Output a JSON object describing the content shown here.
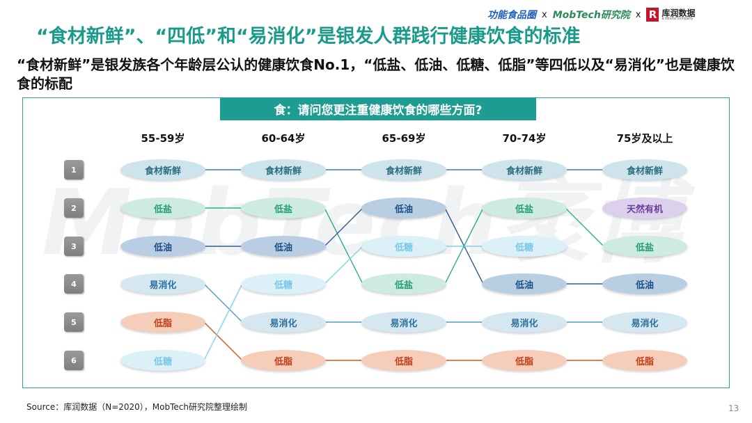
{
  "logos": {
    "brand_a": "功能食品圈",
    "brand_b": "MobTech研究院",
    "brand_c": "库润数据",
    "brand_c_sub": "a toluna company",
    "separator": "x",
    "brand_c_mark": "R"
  },
  "title": "“食材新鲜”、“四低”和“易消化”是银发人群践行健康饮食的标准",
  "subtitle": "“食材新鲜”是银发族各个年龄层公认的健康饮食No.1，“低盐、低油、低糖、低脂”等四低以及“易消化”也是健康饮食的标配",
  "question": "食：请问您更注重健康饮食的哪些方面?",
  "watermark": "MobTech袤博",
  "ranks": [
    "1",
    "2",
    "3",
    "4",
    "5",
    "6"
  ],
  "age_groups": [
    "55-59岁",
    "60-64岁",
    "65-69岁",
    "70-74岁",
    "75岁及以上"
  ],
  "columns": [
    [
      "食材新鲜",
      "低盐",
      "低油",
      "易消化",
      "低脂",
      "低糖"
    ],
    [
      "食材新鲜",
      "低盐",
      "低油",
      "低糖",
      "易消化",
      "低脂"
    ],
    [
      "食材新鲜",
      "低油",
      "低糖",
      "低盐",
      "易消化",
      "低脂"
    ],
    [
      "食材新鲜",
      "低盐",
      "低糖",
      "低油",
      "易消化",
      "低脂"
    ],
    [
      "食材新鲜",
      "天然有机",
      "低盐",
      "低油",
      "易消化",
      "低脂"
    ]
  ],
  "colors": {
    "食材新鲜": {
      "fill": "#cde4ec",
      "text": "#2d6c80",
      "line": "#2f8a95"
    },
    "低盐": {
      "fill": "#cdebe0",
      "text": "#279c7a",
      "line": "#2bb08a"
    },
    "低油": {
      "fill": "#b9cee3",
      "text": "#1c4f85",
      "line": "#2a5f99"
    },
    "易消化": {
      "fill": "#d5e8f2",
      "text": "#2c6f9a",
      "line": "#4a9ccc"
    },
    "低脂": {
      "fill": "#f5cdb8",
      "text": "#c0401a",
      "line": "#d2561e"
    },
    "低糖": {
      "fill": "#dcf0f8",
      "text": "#7ac8e6",
      "line": "#7fd0ee"
    },
    "天然有机": {
      "fill": "#ddd0ec",
      "text": "#6a3f99",
      "line": "#8a6ab5"
    }
  },
  "source": "Source：库润数据（N=2020），MobTech研究院整理绘制",
  "page_number": "13"
}
